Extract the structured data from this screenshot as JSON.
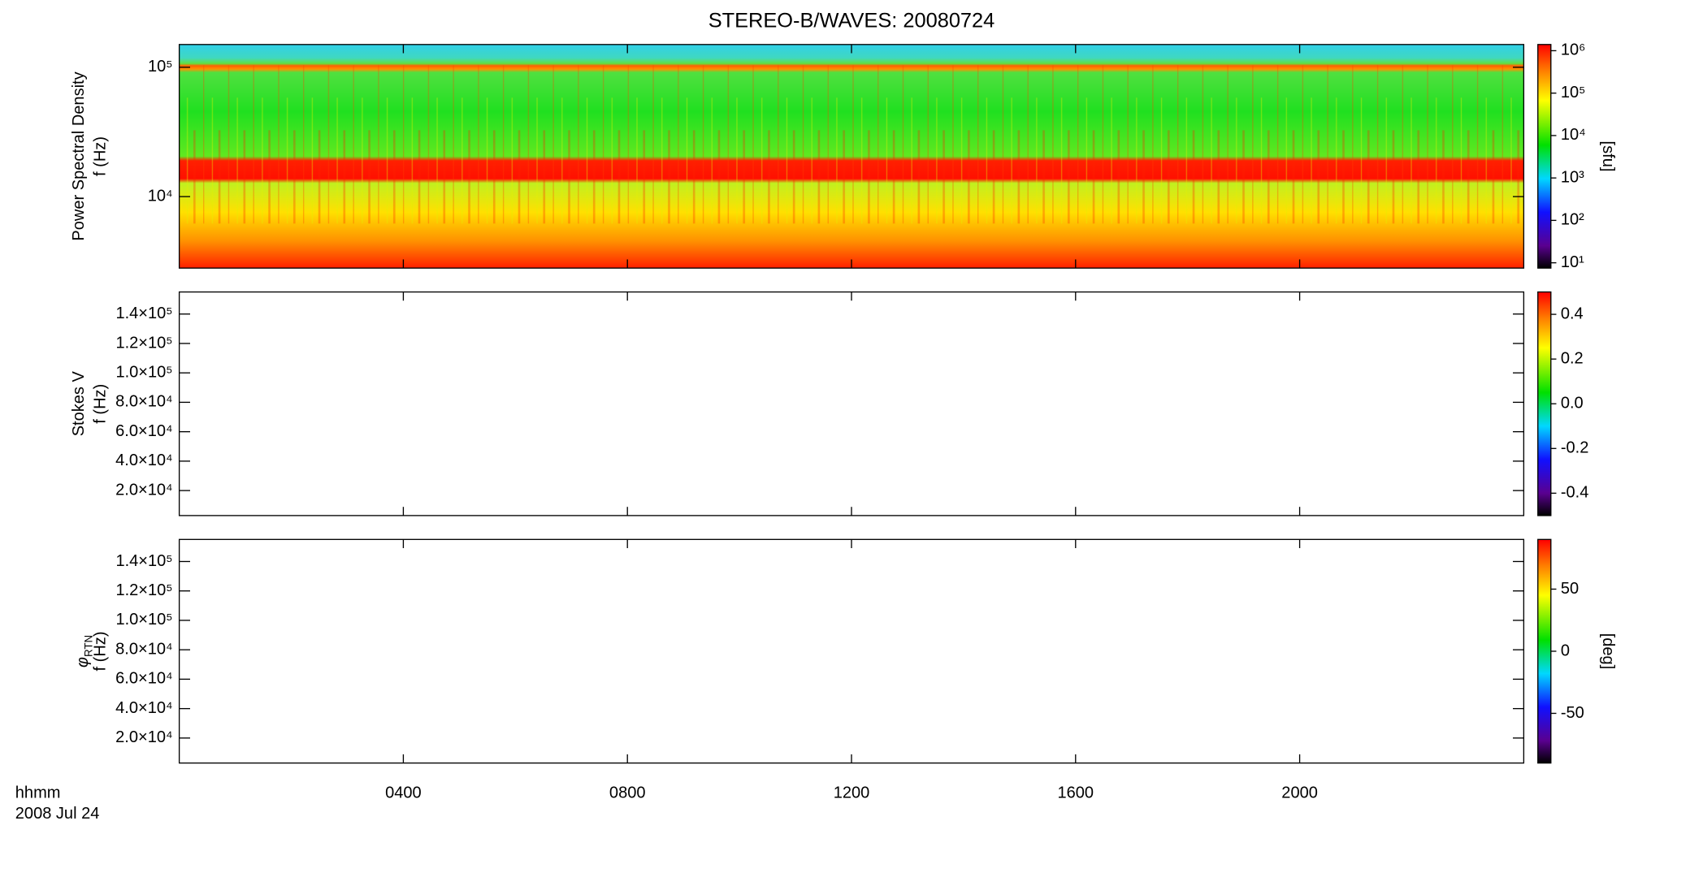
{
  "title": "STEREO-B/WAVES: 20080724",
  "x_label": "hhmm",
  "date_label": "2008 Jul 24",
  "xlim": [
    0,
    24
  ],
  "xticks": [
    {
      "value": 4,
      "label": "0400"
    },
    {
      "value": 8,
      "label": "0800"
    },
    {
      "value": 12,
      "label": "1200"
    },
    {
      "value": 16,
      "label": "1600"
    },
    {
      "value": 20,
      "label": "2000"
    }
  ],
  "chart_data": [
    {
      "type": "heatmap",
      "ylabel": [
        "Power Spectral Density",
        "f (Hz)"
      ],
      "yscale": "log",
      "ylim": [
        2800,
        150000
      ],
      "yticks": [
        {
          "value": 10000,
          "label": "10⁴"
        },
        {
          "value": 100000,
          "label": "10⁵"
        }
      ],
      "zscale": "log",
      "zlim": [
        7.5,
        1400000
      ],
      "colorbar_label": "[sfu]",
      "zticks": [
        {
          "value": 10,
          "label": "10¹"
        },
        {
          "value": 100,
          "label": "10²"
        },
        {
          "value": 1000,
          "label": "10³"
        },
        {
          "value": 10000,
          "label": "10⁴"
        },
        {
          "value": 100000,
          "label": "10⁵"
        },
        {
          "value": 1000000,
          "label": "10⁶"
        }
      ]
    },
    {
      "type": "heatmap",
      "ylabel": [
        "Stokes V",
        "f (Hz)"
      ],
      "yscale": "linear",
      "ylim": [
        3000,
        155000
      ],
      "yticks": [
        {
          "value": 20000,
          "label": "2.0×10⁴"
        },
        {
          "value": 40000,
          "label": "4.0×10⁴"
        },
        {
          "value": 60000,
          "label": "6.0×10⁴"
        },
        {
          "value": 80000,
          "label": "8.0×10⁴"
        },
        {
          "value": 100000,
          "label": "1.0×10⁵"
        },
        {
          "value": 120000,
          "label": "1.2×10⁵"
        },
        {
          "value": 140000,
          "label": "1.4×10⁵"
        }
      ],
      "zscale": "linear",
      "zlim": [
        -0.5,
        0.5
      ],
      "zticks": [
        -0.4,
        -0.2,
        {
          "value": 0,
          "label": "0.0"
        },
        0.2,
        0.4
      ]
    },
    {
      "type": "heatmap",
      "ylabel_symbol": "φ",
      "ylabel_subscript": "RTN",
      "ylabel": [
        "f (Hz)"
      ],
      "yscale": "linear",
      "ylim": [
        3000,
        155000
      ],
      "yticks": [
        {
          "value": 20000,
          "label": "2.0×10⁴"
        },
        {
          "value": 40000,
          "label": "4.0×10⁴"
        },
        {
          "value": 60000,
          "label": "6.0×10⁴"
        },
        {
          "value": 80000,
          "label": "8.0×10⁴"
        },
        {
          "value": 100000,
          "label": "1.0×10⁵"
        },
        {
          "value": 120000,
          "label": "1.2×10⁵"
        },
        {
          "value": 140000,
          "label": "1.4×10⁵"
        }
      ],
      "zscale": "linear",
      "zlim": [
        -90,
        90
      ],
      "colorbar_label": "[deg]",
      "zticks": [
        -50,
        0,
        50
      ]
    }
  ]
}
